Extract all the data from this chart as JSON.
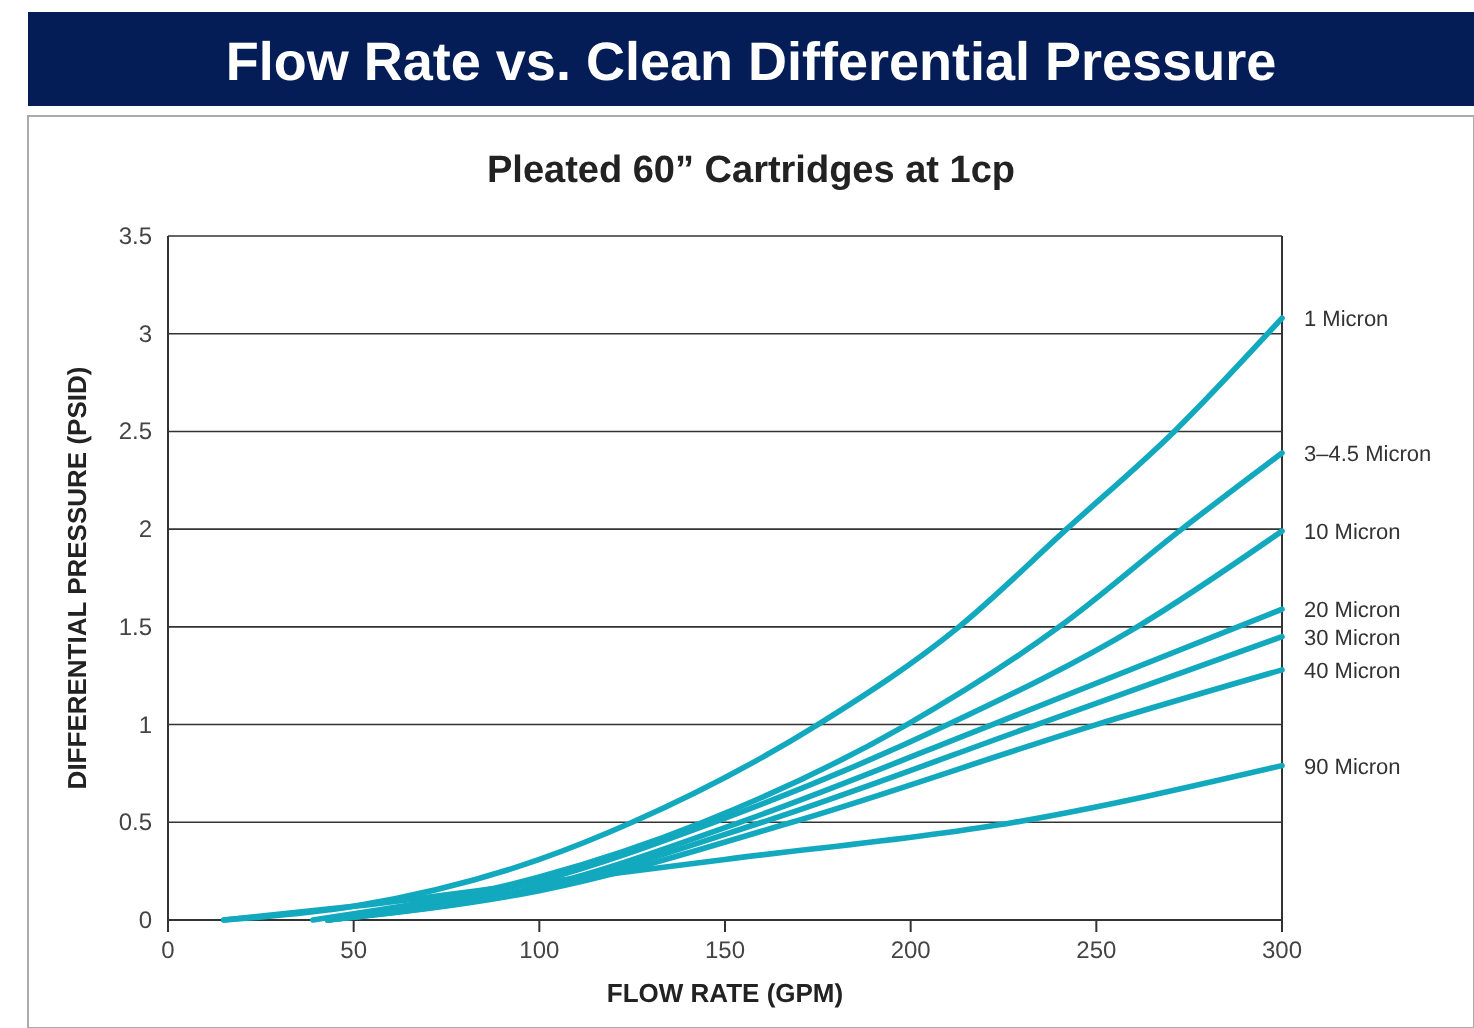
{
  "chart_data": {
    "type": "line",
    "title": "Flow Rate vs. Clean Differential Pressure",
    "subtitle": "Pleated 60” Cartridges at 1cp",
    "xlabel": "FLOW RATE (GPM)",
    "ylabel": "DIFFERENTIAL PRESSURE (PSID)",
    "xlim": [
      0,
      300
    ],
    "ylim": [
      0,
      3.5
    ],
    "xticks": [
      0,
      50,
      100,
      150,
      200,
      250,
      300
    ],
    "yticks": [
      0,
      0.5,
      1,
      1.5,
      2,
      2.5,
      3,
      3.5
    ],
    "grid": "y",
    "marker": "none",
    "line_style": "solid",
    "series": [
      {
        "name": "1 Micron",
        "color": "#12a9bf",
        "x": [
          15,
          50,
          100,
          125,
          175,
          213,
          242,
          271,
          300
        ],
        "values": [
          0,
          0.07,
          0.31,
          0.5,
          1,
          1.5,
          2,
          2.5,
          3.08
        ]
      },
      {
        "name": "3–4.5 Micron",
        "color": "#12a9bf",
        "x": [
          39,
          100,
          144,
          199,
          240,
          273,
          300
        ],
        "values": [
          0,
          0.22,
          0.5,
          1,
          1.5,
          2,
          2.39
        ]
      },
      {
        "name": "10 Micron",
        "color": "#12a9bf",
        "x": [
          43,
          100,
          147,
          210,
          261,
          300
        ],
        "values": [
          0,
          0.2,
          0.5,
          1,
          1.5,
          1.99
        ]
      },
      {
        "name": "20 Micron",
        "color": "#12a9bf",
        "x": [
          43,
          100,
          154,
          222,
          300
        ],
        "values": [
          0,
          0.17,
          0.5,
          1,
          1.59
        ]
      },
      {
        "name": "30 Micron",
        "color": "#12a9bf",
        "x": [
          43,
          100,
          160,
          234,
          300
        ],
        "values": [
          0,
          0.16,
          0.5,
          1,
          1.45
        ]
      },
      {
        "name": "40 Micron",
        "color": "#12a9bf",
        "x": [
          43,
          100,
          168,
          250,
          300
        ],
        "values": [
          0,
          0.15,
          0.5,
          1,
          1.28
        ]
      },
      {
        "name": "90 Micron",
        "color": "#12a9bf",
        "x": [
          15,
          50,
          100,
          150,
          228,
          300
        ],
        "values": [
          0,
          0.07,
          0.19,
          0.31,
          0.5,
          0.79
        ]
      }
    ]
  }
}
